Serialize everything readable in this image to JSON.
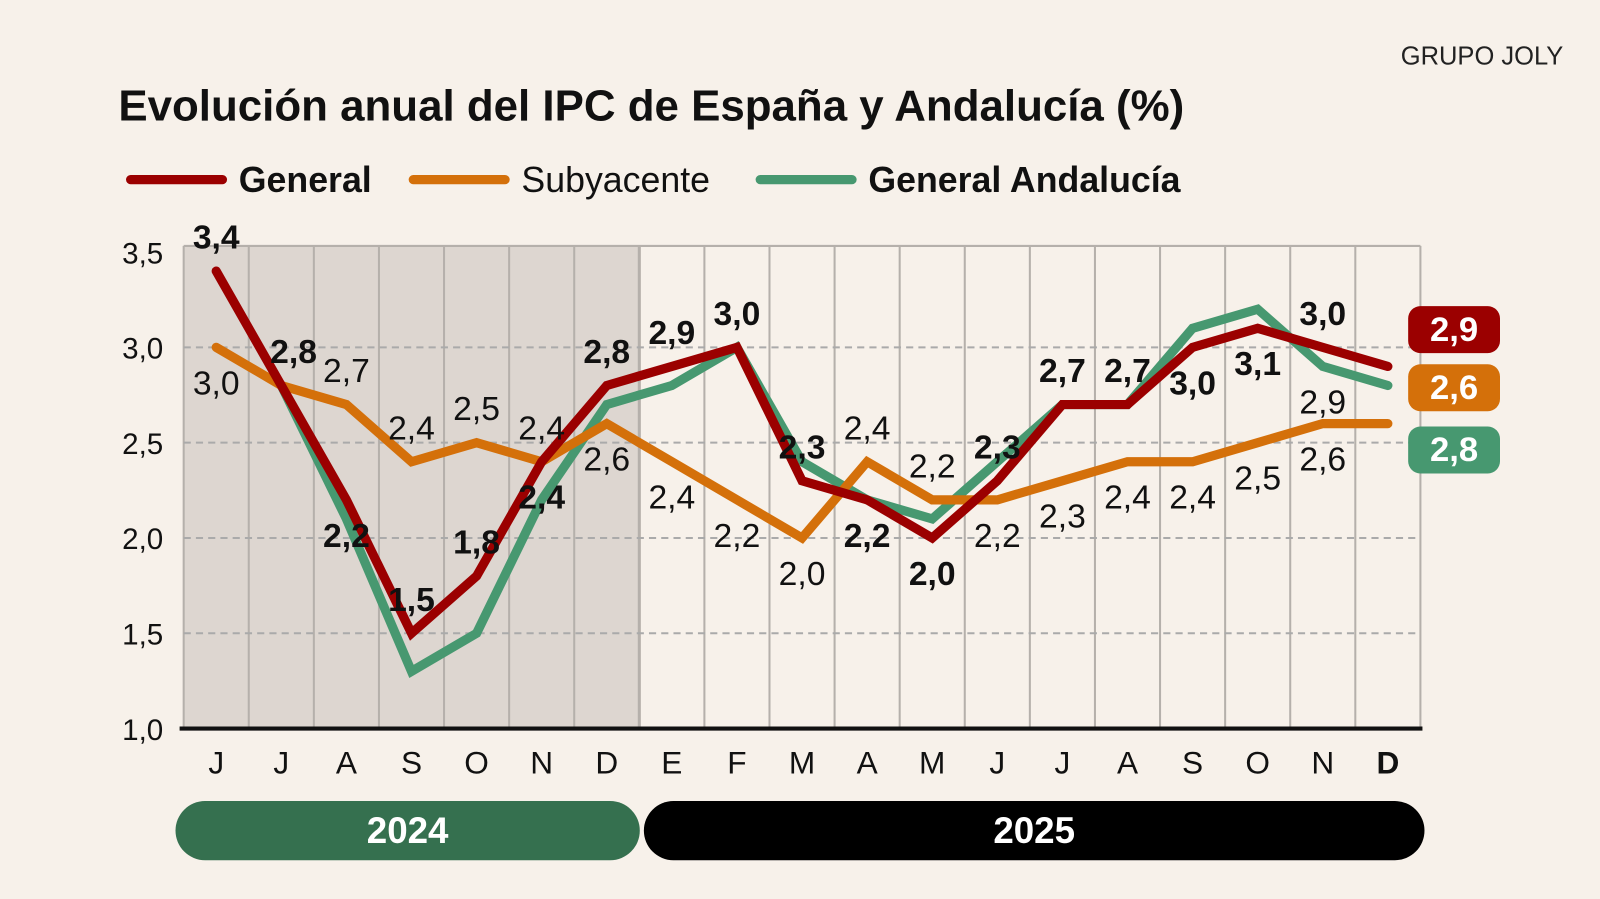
{
  "brand": "GRUPO JOLY",
  "chart_data": {
    "type": "line",
    "title": "Evolución anual del IPC de España y Andalucía (%)",
    "categories": [
      "J",
      "J",
      "A",
      "S",
      "O",
      "N",
      "D",
      "E",
      "F",
      "M",
      "A",
      "M",
      "J",
      "J",
      "A",
      "S",
      "O",
      "N",
      "D"
    ],
    "ylim": [
      1.0,
      3.5
    ],
    "yticks": [
      "1,0",
      "1,5",
      "2,0",
      "2,5",
      "3,0",
      "3,5"
    ],
    "grid": true,
    "legend_position": "top-left",
    "shaded_period": "2024",
    "years": [
      {
        "label": "2024",
        "color": "#35704f"
      },
      {
        "label": "2025",
        "color": "#000000"
      }
    ],
    "series": [
      {
        "name": "General",
        "color": "#9b0000",
        "bold_labels": true,
        "values": [
          3.4,
          2.8,
          2.2,
          1.5,
          1.8,
          2.4,
          2.8,
          2.9,
          3.0,
          2.3,
          2.2,
          2.0,
          2.3,
          2.7,
          2.7,
          3.0,
          3.1,
          3.0,
          2.9
        ],
        "labels": [
          "3,4",
          "2,8",
          "2,2",
          "1,5",
          "1,8",
          "2,4",
          "2,8",
          "2,9",
          "3,0",
          "2,3",
          "2,2",
          "2,0",
          "2,3",
          "2,7",
          "2,7",
          "3,0",
          "3,1",
          "3,0",
          ""
        ],
        "label_side": [
          "above",
          "above",
          "below",
          "above",
          "above",
          "below",
          "above",
          "above",
          "above",
          "above",
          "below",
          "below",
          "above",
          "above",
          "above",
          "below",
          "below",
          "above",
          ""
        ],
        "end_badge": "2,9"
      },
      {
        "name": "Subyacente",
        "color": "#d4700a",
        "bold_labels": false,
        "values": [
          3.0,
          2.8,
          2.7,
          2.4,
          2.5,
          2.4,
          2.6,
          2.4,
          2.2,
          2.0,
          2.4,
          2.2,
          2.2,
          2.3,
          2.4,
          2.4,
          2.5,
          2.6,
          2.6
        ],
        "labels": [
          "3,0",
          "",
          "2,7",
          "2,4",
          "2,5",
          "2,4",
          "2,6",
          "2,4",
          "2,2",
          "2,0",
          "2,4",
          "2,2",
          "2,2",
          "2,3",
          "2,4",
          "2,4",
          "2,5",
          "2,6",
          ""
        ],
        "label_side": [
          "below",
          "",
          "above",
          "above",
          "above",
          "above",
          "below",
          "below",
          "below",
          "below",
          "above",
          "above",
          "below",
          "below",
          "below",
          "below",
          "below",
          "below",
          ""
        ],
        "end_badge": "2,6"
      },
      {
        "name": "General Andalucía",
        "color": "#479870",
        "bold_labels": false,
        "values": [
          null,
          2.8,
          2.1,
          1.3,
          1.5,
          2.2,
          2.7,
          2.8,
          3.0,
          2.4,
          2.2,
          2.1,
          2.4,
          2.7,
          2.7,
          3.1,
          3.2,
          2.9,
          2.8
        ],
        "labels": [
          "",
          "",
          "",
          "",
          "",
          "",
          "",
          "",
          "",
          "",
          "",
          "",
          "",
          "",
          "",
          "",
          "",
          "2,9",
          ""
        ],
        "label_side": [
          "",
          "",
          "",
          "",
          "",
          "",
          "",
          "",
          "",
          "",
          "",
          "",
          "",
          "",
          "",
          "",
          "",
          "below",
          ""
        ],
        "end_badge": "2,8"
      }
    ]
  }
}
